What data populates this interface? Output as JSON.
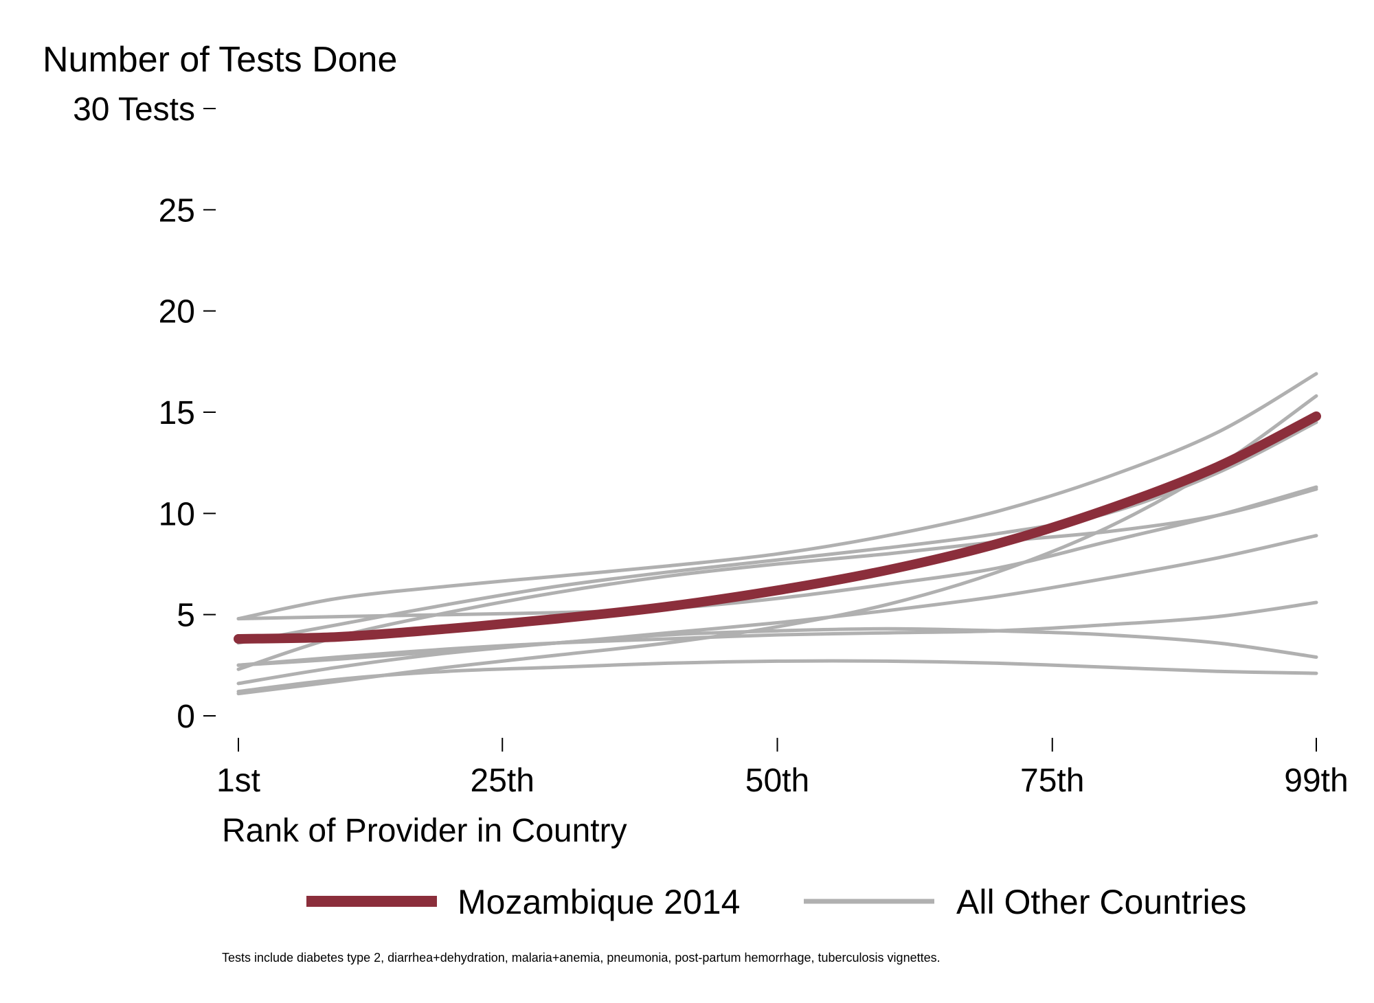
{
  "chart_data": {
    "type": "line",
    "title": "Number of Tests Done",
    "xlabel": "Rank of Provider in Country",
    "ylabel": "",
    "x_ticks": [
      {
        "value": 1,
        "label": "1st"
      },
      {
        "value": 25,
        "label": "25th"
      },
      {
        "value": 50,
        "label": "50th"
      },
      {
        "value": 75,
        "label": "75th"
      },
      {
        "value": 99,
        "label": "99th"
      }
    ],
    "y_ticks": [
      {
        "value": 0,
        "label": "0"
      },
      {
        "value": 5,
        "label": "5"
      },
      {
        "value": 10,
        "label": "10"
      },
      {
        "value": 15,
        "label": "15"
      },
      {
        "value": 20,
        "label": "20"
      },
      {
        "value": 25,
        "label": "25"
      },
      {
        "value": 30,
        "label": "30 Tests"
      }
    ],
    "xlim": [
      1,
      99
    ],
    "ylim": [
      0,
      30
    ],
    "grid": false,
    "legend_position": "bottom",
    "x": [
      1,
      10,
      20,
      30,
      40,
      50,
      60,
      70,
      80,
      90,
      99
    ],
    "series": [
      {
        "name": "Mozambique 2014",
        "color": "#8B2E3B",
        "highlight": true,
        "values": [
          3.8,
          3.9,
          4.3,
          4.8,
          5.4,
          6.2,
          7.2,
          8.5,
          10.2,
          12.3,
          14.8
        ]
      },
      {
        "name": "All Other Countries",
        "color": "#B0B0B0",
        "values": [
          4.8,
          5.8,
          6.4,
          6.9,
          7.4,
          8.0,
          8.9,
          10.1,
          11.8,
          14.0,
          16.9
        ]
      },
      {
        "color": "#B0B0B0",
        "values": [
          1.1,
          1.7,
          2.4,
          3.0,
          3.6,
          4.4,
          5.5,
          7.1,
          9.3,
          12.3,
          15.8
        ]
      },
      {
        "color": "#B0B0B0",
        "values": [
          3.6,
          4.5,
          5.5,
          6.4,
          7.1,
          7.7,
          8.3,
          9.0,
          10.0,
          12.0,
          14.5
        ]
      },
      {
        "color": "#B0B0B0",
        "values": [
          2.3,
          3.9,
          5.1,
          6.1,
          6.9,
          7.5,
          8.0,
          8.6,
          9.1,
          9.9,
          11.2
        ]
      },
      {
        "color": "#B0B0B0",
        "values": [
          4.8,
          4.9,
          5.0,
          5.1,
          5.3,
          5.8,
          6.5,
          7.3,
          8.6,
          9.9,
          11.3
        ]
      },
      {
        "color": "#B0B0B0",
        "values": [
          2.5,
          2.8,
          3.2,
          3.6,
          4.1,
          4.6,
          5.2,
          5.9,
          6.8,
          7.8,
          8.9
        ]
      },
      {
        "color": "#B0B0B0",
        "values": [
          2.5,
          2.9,
          3.3,
          3.6,
          3.8,
          4.0,
          4.1,
          4.2,
          4.5,
          4.9,
          5.6
        ]
      },
      {
        "color": "#B0B0B0",
        "values": [
          1.6,
          2.4,
          3.1,
          3.6,
          4.0,
          4.2,
          4.3,
          4.2,
          4.0,
          3.6,
          2.9
        ]
      },
      {
        "color": "#B0B0B0",
        "values": [
          1.2,
          1.8,
          2.2,
          2.4,
          2.6,
          2.7,
          2.7,
          2.6,
          2.4,
          2.2,
          2.1
        ]
      }
    ],
    "legend": [
      {
        "label": "Mozambique 2014",
        "color": "#8B2E3B"
      },
      {
        "label": "All Other Countries",
        "color": "#B0B0B0"
      }
    ],
    "note": "Tests include diabetes type 2, diarrhea+dehydration, malaria+anemia, pneumonia, post-partum hemorrhage, tuberculosis vignettes."
  }
}
